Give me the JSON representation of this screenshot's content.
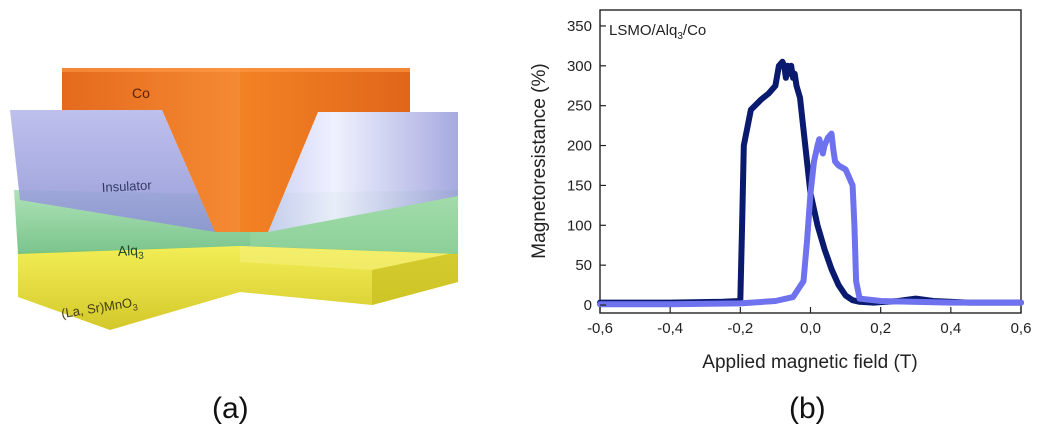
{
  "panel_a": {
    "caption": "(a)",
    "layers": {
      "co": "Co",
      "insulator": "Insulator",
      "alq": "Alq",
      "alq_sub": "3",
      "lsmo_main": "(La, Sr)MnO",
      "lsmo_sub": "3"
    },
    "colors": {
      "co": "#f07a24",
      "insulator": "#a3a8df",
      "alq": "#8fd59a",
      "lsmo": "#e8e23c"
    }
  },
  "panel_b": {
    "caption": "(b)",
    "title_main": "LSMO/Alq",
    "title_sub": "3",
    "title_tail": "/Co"
  },
  "chart_data": {
    "type": "line",
    "xlabel": "Applied magnetic field (T)",
    "ylabel": "Magnetoresistance (%)",
    "xlim": [
      -0.6,
      0.6
    ],
    "ylim": [
      -10,
      370
    ],
    "x_ticks": [
      "-0,6",
      "-0,4",
      "-0,2",
      "0,0",
      "0,2",
      "0,4",
      "0,6"
    ],
    "x_tick_values": [
      -0.6,
      -0.4,
      -0.2,
      0.0,
      0.2,
      0.4,
      0.6
    ],
    "y_ticks": [
      "0",
      "50",
      "100",
      "150",
      "200",
      "250",
      "300",
      "350"
    ],
    "y_tick_values": [
      0,
      50,
      100,
      150,
      200,
      250,
      300,
      350
    ],
    "grid": false,
    "series": [
      {
        "color": "#0a1a6e",
        "x": [
          -0.6,
          -0.4,
          -0.25,
          -0.2,
          -0.195,
          -0.19,
          -0.17,
          -0.14,
          -0.12,
          -0.1,
          -0.09,
          -0.08,
          -0.075,
          -0.07,
          -0.065,
          -0.06,
          -0.055,
          -0.05,
          -0.045,
          -0.04,
          -0.03,
          -0.02,
          -0.01,
          0.0,
          0.02,
          0.04,
          0.06,
          0.08,
          0.1,
          0.12,
          0.14,
          0.18,
          0.25,
          0.3,
          0.35,
          0.45,
          0.6
        ],
        "y": [
          3,
          3,
          4,
          5,
          100,
          200,
          245,
          258,
          265,
          275,
          300,
          305,
          300,
          285,
          300,
          290,
          300,
          285,
          290,
          275,
          260,
          220,
          180,
          140,
          100,
          70,
          45,
          25,
          12,
          6,
          4,
          3,
          5,
          8,
          5,
          3,
          3
        ]
      },
      {
        "color": "#6f72ee",
        "x": [
          -0.6,
          -0.4,
          -0.2,
          -0.1,
          -0.05,
          -0.02,
          -0.01,
          0.0,
          0.01,
          0.02,
          0.025,
          0.03,
          0.035,
          0.04,
          0.05,
          0.06,
          0.065,
          0.07,
          0.08,
          0.1,
          0.11,
          0.12,
          0.125,
          0.13,
          0.14,
          0.2,
          0.4,
          0.6
        ],
        "y": [
          1,
          1,
          2,
          5,
          10,
          30,
          80,
          140,
          180,
          200,
          208,
          200,
          190,
          200,
          210,
          215,
          195,
          180,
          175,
          170,
          160,
          150,
          100,
          30,
          8,
          5,
          3,
          3
        ]
      }
    ]
  }
}
